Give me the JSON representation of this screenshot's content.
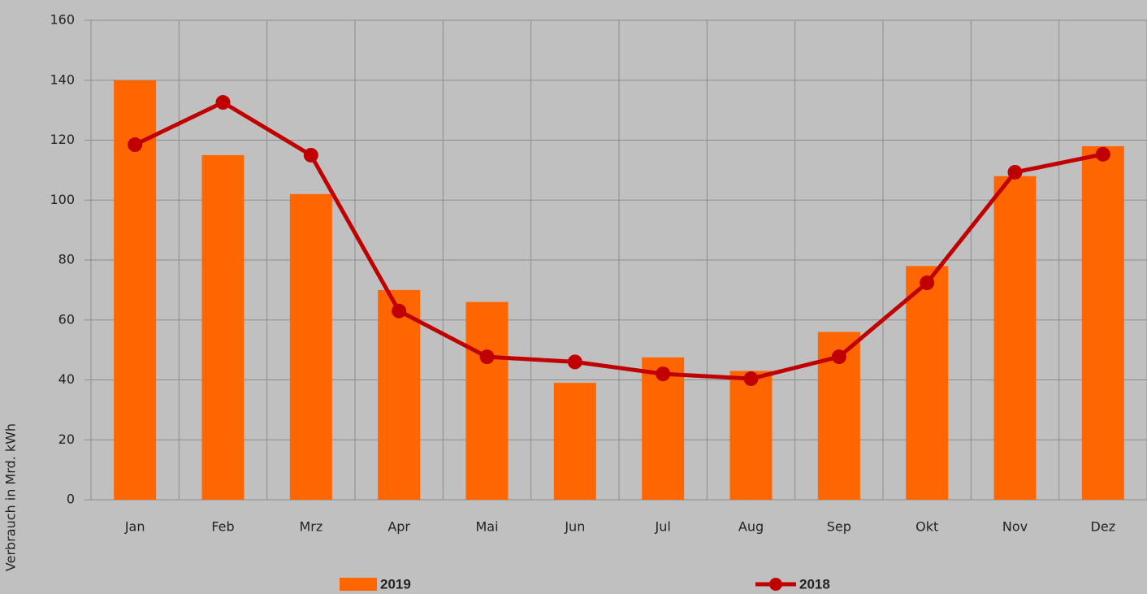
{
  "chart_data": {
    "type": "bar_line",
    "y_label": "Verbrauch in Mrd. kWh",
    "categories": [
      "Jan",
      "Feb",
      "Mrz",
      "Apr",
      "Mai",
      "Jun",
      "Jul",
      "Aug",
      "Sep",
      "Okt",
      "Nov",
      "Dez"
    ],
    "series": [
      {
        "name": "2019",
        "type": "bar",
        "color": "#ff6600",
        "values": [
          140,
          115,
          102,
          70,
          66,
          39,
          47.5,
          43,
          56,
          78,
          108,
          118
        ]
      },
      {
        "name": "2018",
        "type": "line",
        "color": "#c00000",
        "values": [
          118.5,
          132.6,
          115,
          63,
          47.7,
          46,
          42,
          40.4,
          47.7,
          72.4,
          109.3,
          115.3
        ]
      }
    ],
    "ylim": [
      0,
      160
    ],
    "yticks": [
      0,
      20,
      40,
      60,
      80,
      100,
      120,
      140,
      160
    ],
    "grid": true,
    "legend": "bottom"
  }
}
